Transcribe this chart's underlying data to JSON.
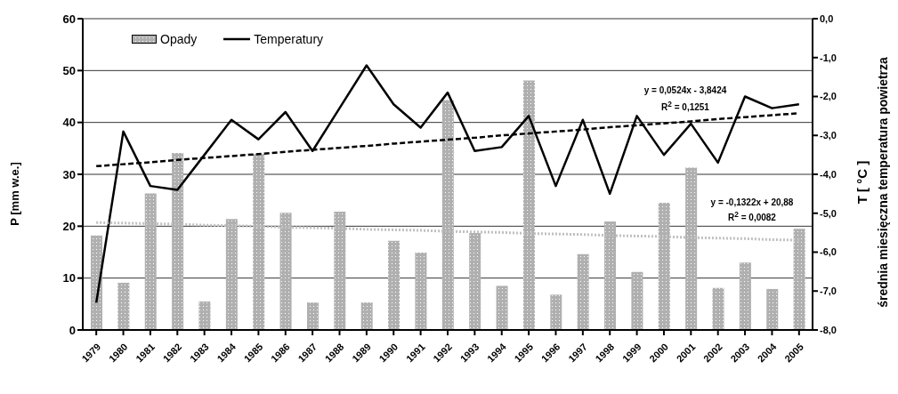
{
  "chart_data": {
    "type": "bar",
    "categories": [
      "1979",
      "1980",
      "1981",
      "1982",
      "1983",
      "1984",
      "1985",
      "1986",
      "1987",
      "1988",
      "1989",
      "1990",
      "1991",
      "1992",
      "1993",
      "1994",
      "1995",
      "1996",
      "1997",
      "1998",
      "1999",
      "2000",
      "2001",
      "2002",
      "2003",
      "2004",
      "2005"
    ],
    "ylabel": "P  [mm w.e.]",
    "y2label": "T  [ °C ]",
    "annotations": [
      "y = 0,0524x - 3,8424",
      "R$^{2}$ = 0,1251",
      "y = -0,1322x + 20,88",
      "R$^{2}$ = 0,0082",
      "średnia miesięczna temperatura powietrza"
    ],
    "series": [
      {
        "name": "Opady",
        "color": "#b0b0b0",
        "values": [
          18.2,
          9.1,
          26.3,
          34.1,
          5.5,
          21.4,
          33.9,
          22.6,
          5.3,
          22.8,
          5.3,
          17.2,
          14.9,
          44.3,
          18.7,
          8.5,
          48.1,
          6.8,
          14.6,
          20.9,
          11.2,
          24.5,
          31.3,
          8.1,
          13.0,
          7.9,
          19.5
        ]
      },
      {
        "name": "Temperatury",
        "type": "line",
        "axis": "y2",
        "color": "#000000",
        "line_style": "solid",
        "values": [
          -7.3,
          -2.9,
          -4.3,
          -4.4,
          -3.5,
          -2.6,
          -3.1,
          -2.4,
          -3.4,
          -2.3,
          -1.2,
          -2.2,
          -2.8,
          -1.9,
          -3.4,
          -3.3,
          -2.5,
          -4.3,
          -2.6,
          -4.5,
          -2.5,
          -3.5,
          -2.7,
          -3.7,
          -2.0,
          -2.3,
          -2.2
        ]
      },
      {
        "type": "line",
        "axis": "y2",
        "color": "#000000",
        "line_style": "dashed",
        "values": [
          -3.79,
          -3.74,
          -3.69,
          -3.63,
          -3.58,
          -3.53,
          -3.48,
          -3.42,
          -3.37,
          -3.32,
          -3.27,
          -3.21,
          -3.16,
          -3.11,
          -3.06,
          -3.0,
          -2.95,
          -2.9,
          -2.85,
          -2.79,
          -2.74,
          -2.69,
          -2.64,
          -2.58,
          -2.53,
          -2.48,
          -2.43
        ]
      },
      {
        "type": "line",
        "color": "#c0c0c0",
        "line_style": "dotted",
        "values": [
          20.7,
          20.6,
          20.5,
          20.4,
          20.2,
          20.1,
          20.0,
          19.8,
          19.7,
          19.6,
          19.4,
          19.3,
          19.2,
          19.0,
          18.9,
          18.8,
          18.6,
          18.5,
          18.4,
          18.2,
          18.1,
          18.0,
          17.8,
          17.7,
          17.6,
          17.4,
          17.3
        ]
      }
    ],
    "ylim": [
      0,
      60
    ],
    "yticks": [
      0,
      10,
      20,
      30,
      40,
      50,
      60
    ],
    "y2lim": [
      -8,
      0
    ],
    "y2ticks": [
      {
        "value": -8,
        "label": "-8,0"
      },
      {
        "value": -7,
        "label": "-7,0"
      },
      {
        "value": -6,
        "label": "-6,0"
      },
      {
        "value": -5,
        "label": "-5,0"
      },
      {
        "value": -4,
        "label": "-4,0"
      },
      {
        "value": -3,
        "label": "-3,0"
      },
      {
        "value": -2,
        "label": "-2,0"
      },
      {
        "value": -1,
        "label": "-1,0"
      },
      {
        "value": 0,
        "label": "0,0"
      }
    ],
    "grid": "y",
    "legend": "top left",
    "marker": "none"
  }
}
